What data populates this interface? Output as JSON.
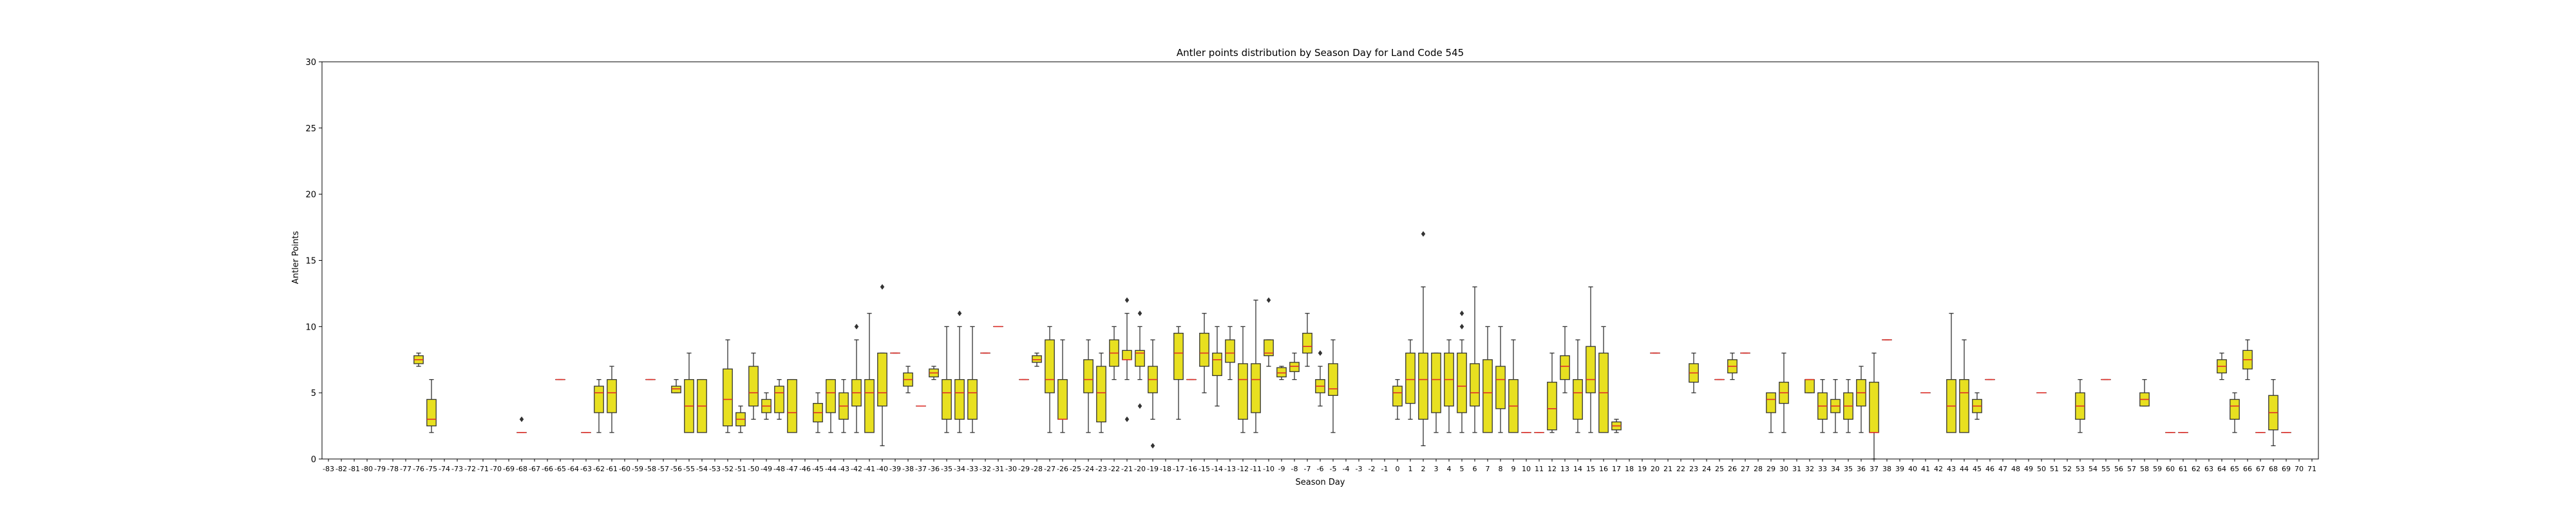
{
  "chart_data": {
    "type": "box",
    "title": "Antler points distribution by Season Day for Land Code 545",
    "xlabel": "Season Day",
    "ylabel": "Antler Points",
    "ylim": [
      0,
      30
    ],
    "yticks": [
      0,
      5,
      10,
      15,
      20,
      25,
      30
    ],
    "grid": false,
    "colors": {
      "box_fill": "#e8e020",
      "box_edge": "#333333",
      "median": "#e0302a",
      "whisker": "#333333",
      "flier": "#333333"
    },
    "categories": [
      "-83",
      "-82",
      "-81",
      "-80",
      "-79",
      "-78",
      "-77",
      "-76",
      "-75",
      "-74",
      "-73",
      "-72",
      "-71",
      "-70",
      "-69",
      "-68",
      "-67",
      "-66",
      "-65",
      "-64",
      "-63",
      "-62",
      "-61",
      "-60",
      "-59",
      "-58",
      "-57",
      "-56",
      "-55",
      "-54",
      "-53",
      "-52",
      "-51",
      "-50",
      "-49",
      "-48",
      "-47",
      "-46",
      "-45",
      "-44",
      "-43",
      "-42",
      "-41",
      "-40",
      "-39",
      "-38",
      "-37",
      "-36",
      "-35",
      "-34",
      "-33",
      "-32",
      "-31",
      "-30",
      "-29",
      "-28",
      "-27",
      "-26",
      "-25",
      "-24",
      "-23",
      "-22",
      "-21",
      "-20",
      "-19",
      "-18",
      "-17",
      "-16",
      "-15",
      "-14",
      "-13",
      "-12",
      "-11",
      "-10",
      "-9",
      "-8",
      "-7",
      "-6",
      "-5",
      "-4",
      "-3",
      "-2",
      "-1",
      "0",
      "1",
      "2",
      "3",
      "4",
      "5",
      "6",
      "7",
      "8",
      "9",
      "10",
      "11",
      "12",
      "13",
      "14",
      "15",
      "16",
      "17",
      "18",
      "19",
      "20",
      "21",
      "22",
      "23",
      "24",
      "25",
      "26",
      "27",
      "28",
      "29",
      "30",
      "31",
      "32",
      "33",
      "34",
      "35",
      "36",
      "37",
      "38",
      "39",
      "40",
      "41",
      "42",
      "43",
      "44",
      "45",
      "46",
      "47",
      "48",
      "49",
      "50",
      "51",
      "52",
      "53",
      "54",
      "55",
      "56",
      "57",
      "58",
      "59",
      "60",
      "61",
      "62",
      "63",
      "64",
      "65",
      "66",
      "67",
      "68",
      "69",
      "70",
      "71"
    ],
    "boxes": [
      {
        "x": "-76",
        "whislo": 7,
        "q1": 7.2,
        "med": 7.5,
        "q3": 7.8,
        "whishi": 8,
        "fliers": []
      },
      {
        "x": "-75",
        "whislo": 2,
        "q1": 2.5,
        "med": 3,
        "q3": 4.5,
        "whislo2": null,
        "whishi": 6,
        "fliers": []
      },
      {
        "x": "-68",
        "whislo": 2,
        "q1": 2,
        "med": 2,
        "q3": 2,
        "whishi": 2,
        "fliers": [
          3
        ]
      },
      {
        "x": "-65",
        "whislo": 6,
        "q1": 6,
        "med": 6,
        "q3": 6,
        "whishi": 6,
        "fliers": []
      },
      {
        "x": "-63",
        "whislo": 2,
        "q1": 2,
        "med": 2,
        "q3": 2,
        "whishi": 2,
        "fliers": []
      },
      {
        "x": "-62",
        "whislo": 2,
        "q1": 3.5,
        "med": 5,
        "q3": 5.5,
        "whishi": 6,
        "fliers": []
      },
      {
        "x": "-61",
        "whislo": 2,
        "q1": 3.5,
        "med": 5,
        "q3": 6,
        "whishi": 7,
        "fliers": []
      },
      {
        "x": "-58",
        "whislo": 6,
        "q1": 6,
        "med": 6,
        "q3": 6,
        "whishi": 6,
        "fliers": []
      },
      {
        "x": "-56",
        "whislo": 5,
        "q1": 5,
        "med": 5.3,
        "q3": 5.5,
        "whishi": 6,
        "fliers": []
      },
      {
        "x": "-55",
        "whislo": 2,
        "q1": 2,
        "med": 4,
        "q3": 6,
        "whishi": 8,
        "fliers": []
      },
      {
        "x": "-54",
        "whislo": 2,
        "q1": 2,
        "med": 4,
        "q3": 6,
        "whishi": 6,
        "fliers": []
      },
      {
        "x": "-52",
        "whislo": 2,
        "q1": 2.5,
        "med": 4.5,
        "q3": 6.8,
        "whishi": 9,
        "fliers": []
      },
      {
        "x": "-51",
        "whislo": 2,
        "q1": 2.5,
        "med": 3,
        "q3": 3.5,
        "whishi": 4,
        "fliers": []
      },
      {
        "x": "-50",
        "whislo": 3,
        "q1": 4,
        "med": 5,
        "q3": 7,
        "whishi": 8,
        "fliers": []
      },
      {
        "x": "-49",
        "whislo": 3,
        "q1": 3.5,
        "med": 4,
        "q3": 4.5,
        "whishi": 5,
        "fliers": []
      },
      {
        "x": "-48",
        "whislo": 3,
        "q1": 3.5,
        "med": 5,
        "q3": 5.5,
        "whishi": 6,
        "fliers": []
      },
      {
        "x": "-47",
        "whislo": 2,
        "q1": 2,
        "med": 3.5,
        "q3": 6,
        "whishi": 6,
        "fliers": []
      },
      {
        "x": "-45",
        "whislo": 2,
        "q1": 2.8,
        "med": 3.5,
        "q3": 4.2,
        "whishi": 5,
        "fliers": []
      },
      {
        "x": "-44",
        "whislo": 2,
        "q1": 3.5,
        "med": 5,
        "q3": 6,
        "whishi": 6,
        "fliers": []
      },
      {
        "x": "-43",
        "whislo": 2,
        "q1": 3,
        "med": 4,
        "q3": 5,
        "whishi": 6,
        "fliers": []
      },
      {
        "x": "-42",
        "whislo": 2,
        "q1": 4,
        "med": 5,
        "q3": 6,
        "whishi": 9,
        "fliers": [
          10
        ]
      },
      {
        "x": "-41",
        "whislo": 2,
        "q1": 2,
        "med": 5,
        "q3": 6,
        "whishi": 11,
        "fliers": []
      },
      {
        "x": "-40",
        "whislo": 1,
        "q1": 4,
        "med": 5,
        "q3": 8,
        "whishi": 8,
        "fliers": [
          13
        ]
      },
      {
        "x": "-39",
        "whislo": 8,
        "q1": 8,
        "med": 8,
        "q3": 8,
        "whishi": 8,
        "fliers": []
      },
      {
        "x": "-38",
        "whislo": 5,
        "q1": 5.5,
        "med": 6,
        "q3": 6.5,
        "whishi": 7,
        "fliers": []
      },
      {
        "x": "-37",
        "whislo": 4,
        "q1": 4,
        "med": 4,
        "q3": 4,
        "whishi": 4,
        "fliers": []
      },
      {
        "x": "-36",
        "whislo": 6,
        "q1": 6.2,
        "med": 6.5,
        "q3": 6.8,
        "whishi": 7,
        "fliers": []
      },
      {
        "x": "-35",
        "whislo": 2,
        "q1": 3,
        "med": 5,
        "q3": 6,
        "whishi": 10,
        "fliers": []
      },
      {
        "x": "-34",
        "whislo": 2,
        "q1": 3,
        "med": 5,
        "q3": 6,
        "whishi": 10,
        "fliers": [
          11
        ]
      },
      {
        "x": "-33",
        "whislo": 2,
        "q1": 3,
        "med": 5,
        "q3": 6,
        "whishi": 10,
        "fliers": []
      },
      {
        "x": "-32",
        "whislo": 8,
        "q1": 8,
        "med": 8,
        "q3": 8,
        "whishi": 8,
        "fliers": []
      },
      {
        "x": "-31",
        "whislo": 10,
        "q1": 10,
        "med": 10,
        "q3": 10,
        "whishi": 10,
        "fliers": []
      },
      {
        "x": "-29",
        "whislo": 6,
        "q1": 6,
        "med": 6,
        "q3": 6,
        "whishi": 6,
        "fliers": []
      },
      {
        "x": "-28",
        "whislo": 7,
        "q1": 7.3,
        "med": 7.5,
        "q3": 7.8,
        "whishi": 8,
        "fliers": []
      },
      {
        "x": "-27",
        "whislo": 2,
        "q1": 5,
        "med": 6,
        "q3": 9,
        "whishi": 10,
        "fliers": []
      },
      {
        "x": "-26",
        "whislo": 2,
        "q1": 3,
        "med": 3,
        "q3": 6,
        "whishi": 9,
        "fliers": []
      },
      {
        "x": "-24",
        "whislo": 2,
        "q1": 5,
        "med": 6,
        "q3": 7.5,
        "whishi": 9,
        "fliers": []
      },
      {
        "x": "-23",
        "whislo": 2,
        "q1": 2.8,
        "med": 5,
        "q3": 7,
        "whishi": 8,
        "fliers": []
      },
      {
        "x": "-22",
        "whislo": 6,
        "q1": 7,
        "med": 8,
        "q3": 9,
        "whishi": 10,
        "fliers": []
      },
      {
        "x": "-21",
        "whislo": 6,
        "q1": 7.5,
        "med": 7.5,
        "q3": 8.2,
        "whishi": 11,
        "fliers": [
          12,
          3
        ]
      },
      {
        "x": "-20",
        "whislo": 6,
        "q1": 7,
        "med": 8,
        "q3": 8.2,
        "whishi": 10,
        "fliers": [
          11,
          4
        ]
      },
      {
        "x": "-19",
        "whislo": 3,
        "q1": 5,
        "med": 6,
        "q3": 7,
        "whishi": 9,
        "fliers": [
          1
        ]
      },
      {
        "x": "-17",
        "whislo": 3,
        "q1": 6,
        "med": 8,
        "q3": 9.5,
        "whishi": 10,
        "fliers": []
      },
      {
        "x": "-16",
        "whislo": 6,
        "q1": 6,
        "med": 6,
        "q3": 6,
        "whishi": 6,
        "fliers": []
      },
      {
        "x": "-15",
        "whislo": 5,
        "q1": 7,
        "med": 8,
        "q3": 9.5,
        "whishi": 11,
        "fliers": []
      },
      {
        "x": "-14",
        "whislo": 4,
        "q1": 6.3,
        "med": 7.5,
        "q3": 8,
        "whishi": 10,
        "fliers": []
      },
      {
        "x": "-13",
        "whislo": 6,
        "q1": 7.3,
        "med": 8,
        "q3": 9,
        "whishi": 10,
        "fliers": []
      },
      {
        "x": "-12",
        "whislo": 2,
        "q1": 3,
        "med": 6,
        "q3": 7.2,
        "whishi": 10,
        "fliers": []
      },
      {
        "x": "-11",
        "whislo": 2,
        "q1": 3.5,
        "med": 6,
        "q3": 7.2,
        "whishi": 12,
        "fliers": []
      },
      {
        "x": "-10",
        "whislo": 7,
        "q1": 7.8,
        "med": 8,
        "q3": 9,
        "whishi": 9,
        "fliers": [
          12
        ]
      },
      {
        "x": "-9",
        "whislo": 6,
        "q1": 6.2,
        "med": 6.5,
        "q3": 6.9,
        "whishi": 7,
        "fliers": []
      },
      {
        "x": "-8",
        "whislo": 6,
        "q1": 6.6,
        "med": 7,
        "q3": 7.3,
        "whishi": 8,
        "fliers": []
      },
      {
        "x": "-7",
        "whislo": 7,
        "q1": 8,
        "med": 8.5,
        "q3": 9.5,
        "whishi": 11,
        "fliers": []
      },
      {
        "x": "-6",
        "whislo": 4,
        "q1": 5,
        "med": 5.5,
        "q3": 6,
        "whishi": 7,
        "fliers": [
          8
        ]
      },
      {
        "x": "-5",
        "whislo": 2,
        "q1": 4.8,
        "med": 5.3,
        "q3": 7.2,
        "whishi": 9,
        "fliers": []
      },
      {
        "x": "0",
        "whislo": 3,
        "q1": 4,
        "med": 5,
        "q3": 5.5,
        "whishi": 6,
        "fliers": []
      },
      {
        "x": "1",
        "whislo": 3,
        "q1": 4.2,
        "med": 6,
        "q3": 8,
        "whishi": 9,
        "fliers": []
      },
      {
        "x": "2",
        "whislo": 1,
        "q1": 3,
        "med": 6,
        "q3": 8,
        "whishi": 13,
        "fliers": [
          17
        ]
      },
      {
        "x": "3",
        "whislo": 2,
        "q1": 3.5,
        "med": 6,
        "q3": 8,
        "whishi": 8,
        "fliers": []
      },
      {
        "x": "4",
        "whislo": 2,
        "q1": 4,
        "med": 6,
        "q3": 8,
        "whishi": 9,
        "fliers": []
      },
      {
        "x": "5",
        "whislo": 2,
        "q1": 3.5,
        "med": 5.5,
        "q3": 8,
        "whishi": 9,
        "fliers": [
          10,
          11
        ]
      },
      {
        "x": "6",
        "whislo": 2,
        "q1": 4,
        "med": 5,
        "q3": 7.2,
        "whishi": 13,
        "fliers": []
      },
      {
        "x": "7",
        "whislo": 2,
        "q1": 2,
        "med": 5,
        "q3": 7.5,
        "whishi": 10,
        "fliers": []
      },
      {
        "x": "8",
        "whislo": 2,
        "q1": 3.8,
        "med": 6,
        "q3": 7,
        "whishi": 10,
        "fliers": []
      },
      {
        "x": "9",
        "whislo": 2,
        "q1": 2,
        "med": 4,
        "q3": 6,
        "whishi": 9,
        "fliers": []
      },
      {
        "x": "10",
        "whislo": 2,
        "q1": 2,
        "med": 2,
        "q3": 2,
        "whishi": 2,
        "fliers": []
      },
      {
        "x": "11",
        "whislo": 2,
        "q1": 2,
        "med": 2,
        "q3": 2,
        "whishi": 2,
        "fliers": []
      },
      {
        "x": "12",
        "whislo": 2,
        "q1": 2.2,
        "med": 3.8,
        "q3": 5.8,
        "whishi": 8,
        "fliers": []
      },
      {
        "x": "13",
        "whislo": 5,
        "q1": 6,
        "med": 7,
        "q3": 7.8,
        "whishi": 10,
        "fliers": []
      },
      {
        "x": "14",
        "whislo": 2,
        "q1": 3,
        "med": 5,
        "q3": 6,
        "whishi": 9,
        "fliers": []
      },
      {
        "x": "15",
        "whislo": 2,
        "q1": 5,
        "med": 6,
        "q3": 8.5,
        "whishi": 13,
        "fliers": []
      },
      {
        "x": "16",
        "whislo": 2,
        "q1": 2,
        "med": 5,
        "q3": 8,
        "whishi": 10,
        "fliers": []
      },
      {
        "x": "17",
        "whislo": 2,
        "q1": 2.2,
        "med": 2.5,
        "q3": 2.8,
        "whishi": 3,
        "fliers": []
      },
      {
        "x": "20",
        "whislo": 8,
        "q1": 8,
        "med": 8,
        "q3": 8,
        "whishi": 8,
        "fliers": []
      },
      {
        "x": "23",
        "whislo": 5,
        "q1": 5.8,
        "med": 6.5,
        "q3": 7.2,
        "whishi": 8,
        "fliers": []
      },
      {
        "x": "25",
        "whislo": 6,
        "q1": 6,
        "med": 6,
        "q3": 6,
        "whishi": 6,
        "fliers": []
      },
      {
        "x": "26",
        "whislo": 6,
        "q1": 6.5,
        "med": 7,
        "q3": 7.5,
        "whishi": 8,
        "fliers": []
      },
      {
        "x": "27",
        "whislo": 8,
        "q1": 8,
        "med": 8,
        "q3": 8,
        "whishi": 8,
        "fliers": []
      },
      {
        "x": "29",
        "whislo": 2,
        "q1": 3.5,
        "med": 4.5,
        "q3": 5,
        "whishi": 5,
        "fliers": []
      },
      {
        "x": "30",
        "whislo": 2,
        "q1": 4.2,
        "med": 5,
        "q3": 5.8,
        "whishi": 8,
        "fliers": []
      },
      {
        "x": "32",
        "whislo": 5,
        "q1": 5,
        "med": 6,
        "q3": 6,
        "whishi": 6,
        "fliers": []
      },
      {
        "x": "33",
        "whislo": 2,
        "q1": 3,
        "med": 4,
        "q3": 5,
        "whishi": 6,
        "fliers": []
      },
      {
        "x": "34",
        "whislo": 2,
        "q1": 3.5,
        "med": 4,
        "q3": 4.5,
        "whishi": 6,
        "fliers": []
      },
      {
        "x": "35",
        "whislo": 2,
        "q1": 3,
        "med": 4,
        "q3": 5,
        "whishi": 6,
        "fliers": []
      },
      {
        "x": "36",
        "whislo": 2,
        "q1": 4,
        "med": 5,
        "q3": 6,
        "whishi": 7,
        "fliers": []
      },
      {
        "x": "37",
        "whislo": 0,
        "q1": 2,
        "med": 2,
        "q3": 5.8,
        "whishi": 8,
        "fliers": []
      },
      {
        "x": "38",
        "whislo": 9,
        "q1": 9,
        "med": 9,
        "q3": 9,
        "whishi": 9,
        "fliers": []
      },
      {
        "x": "41",
        "whislo": 5,
        "q1": 5,
        "med": 5,
        "q3": 5,
        "whishi": 5,
        "fliers": []
      },
      {
        "x": "43",
        "whislo": 2,
        "q1": 2,
        "med": 4,
        "q3": 6,
        "whishi": 11,
        "fliers": []
      },
      {
        "x": "44",
        "whislo": 2,
        "q1": 2,
        "med": 5,
        "q3": 6,
        "whishi": 9,
        "fliers": []
      },
      {
        "x": "45",
        "whislo": 3,
        "q1": 3.5,
        "med": 4,
        "q3": 4.5,
        "whishi": 5,
        "fliers": []
      },
      {
        "x": "46",
        "whislo": 6,
        "q1": 6,
        "med": 6,
        "q3": 6,
        "whishi": 6,
        "fliers": []
      },
      {
        "x": "50",
        "whislo": 5,
        "q1": 5,
        "med": 5,
        "q3": 5,
        "whishi": 5,
        "fliers": []
      },
      {
        "x": "53",
        "whislo": 2,
        "q1": 3,
        "med": 4,
        "q3": 5,
        "whishi": 6,
        "fliers": []
      },
      {
        "x": "55",
        "whislo": 6,
        "q1": 6,
        "med": 6,
        "q3": 6,
        "whishi": 6,
        "fliers": []
      },
      {
        "x": "58",
        "whislo": 4,
        "q1": 4,
        "med": 4.5,
        "q3": 5,
        "whishi": 6,
        "fliers": []
      },
      {
        "x": "60",
        "whislo": 2,
        "q1": 2,
        "med": 2,
        "q3": 2,
        "whishi": 2,
        "fliers": []
      },
      {
        "x": "61",
        "whislo": 2,
        "q1": 2,
        "med": 2,
        "q3": 2,
        "whishi": 2,
        "fliers": []
      },
      {
        "x": "64",
        "whislo": 6,
        "q1": 6.5,
        "med": 7,
        "q3": 7.5,
        "whishi": 8,
        "fliers": []
      },
      {
        "x": "65",
        "whislo": 2,
        "q1": 3,
        "med": 4,
        "q3": 4.5,
        "whishi": 5,
        "fliers": []
      },
      {
        "x": "66",
        "whislo": 6,
        "q1": 6.8,
        "med": 7.5,
        "q3": 8.2,
        "whishi": 9,
        "fliers": []
      },
      {
        "x": "67",
        "whislo": 2,
        "q1": 2,
        "med": 2,
        "q3": 2,
        "whishi": 2,
        "fliers": []
      },
      {
        "x": "68",
        "whislo": 1,
        "q1": 2.2,
        "med": 3.5,
        "q3": 4.8,
        "whishi": 6,
        "fliers": []
      },
      {
        "x": "69",
        "whislo": 2,
        "q1": 2,
        "med": 2,
        "q3": 2,
        "whishi": 2,
        "fliers": []
      }
    ]
  }
}
